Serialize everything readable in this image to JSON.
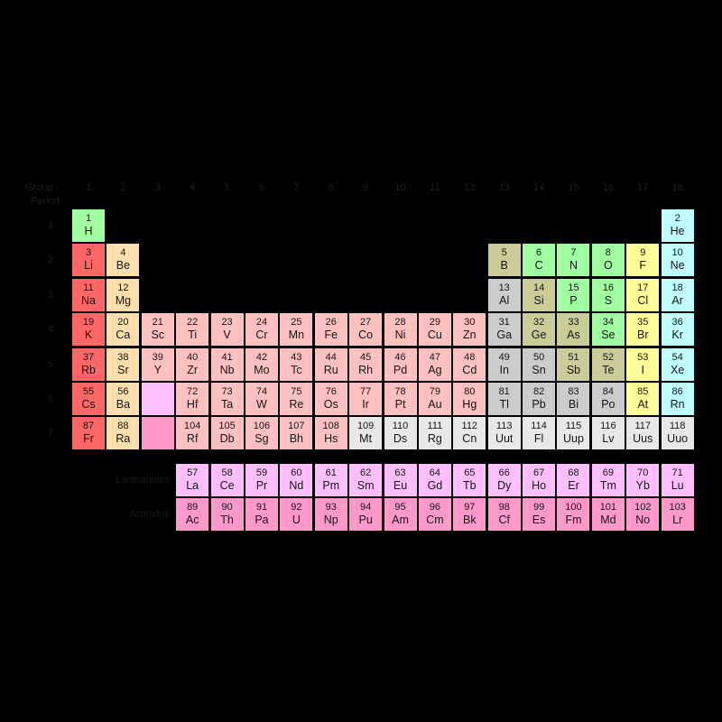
{
  "labels": {
    "group": "Group",
    "period": "Period",
    "lanthanides": "Lanthanides",
    "actinides": "Actinides"
  },
  "group_numbers": [
    "1",
    "2",
    "3",
    "4",
    "5",
    "6",
    "7",
    "8",
    "9",
    "10",
    "11",
    "12",
    "13",
    "14",
    "15",
    "16",
    "17",
    "18"
  ],
  "period_numbers": [
    "1",
    "2",
    "3",
    "4",
    "5",
    "6",
    "7"
  ],
  "colors": {
    "alkali": "#ff6666",
    "alkaline": "#ffdead",
    "transition": "#ffc0c0",
    "post": "#cccccc",
    "metalloid": "#cccc99",
    "nonmetal": "#a0ffa0",
    "halogen": "#ffff99",
    "noble": "#c0ffff",
    "lanthanide": "#ffbfff",
    "actinide": "#ff99cc",
    "unknown": "#e8e8e8"
  },
  "elements": [
    {
      "number": "1",
      "symbol": "H",
      "category": "nonmetal",
      "row": 1,
      "col": 1
    },
    {
      "number": "2",
      "symbol": "He",
      "category": "noble",
      "row": 1,
      "col": 18
    },
    {
      "number": "3",
      "symbol": "Li",
      "category": "alkali",
      "row": 2,
      "col": 1
    },
    {
      "number": "4",
      "symbol": "Be",
      "category": "alkaline",
      "row": 2,
      "col": 2
    },
    {
      "number": "5",
      "symbol": "B",
      "category": "metalloid",
      "row": 2,
      "col": 13
    },
    {
      "number": "6",
      "symbol": "C",
      "category": "nonmetal",
      "row": 2,
      "col": 14
    },
    {
      "number": "7",
      "symbol": "N",
      "category": "nonmetal",
      "row": 2,
      "col": 15
    },
    {
      "number": "8",
      "symbol": "O",
      "category": "nonmetal",
      "row": 2,
      "col": 16
    },
    {
      "number": "9",
      "symbol": "F",
      "category": "halogen",
      "row": 2,
      "col": 17
    },
    {
      "number": "10",
      "symbol": "Ne",
      "category": "noble",
      "row": 2,
      "col": 18
    },
    {
      "number": "11",
      "symbol": "Na",
      "category": "alkali",
      "row": 3,
      "col": 1
    },
    {
      "number": "12",
      "symbol": "Mg",
      "category": "alkaline",
      "row": 3,
      "col": 2
    },
    {
      "number": "13",
      "symbol": "Al",
      "category": "post",
      "row": 3,
      "col": 13
    },
    {
      "number": "14",
      "symbol": "Si",
      "category": "metalloid",
      "row": 3,
      "col": 14
    },
    {
      "number": "15",
      "symbol": "P",
      "category": "nonmetal",
      "row": 3,
      "col": 15
    },
    {
      "number": "16",
      "symbol": "S",
      "category": "nonmetal",
      "row": 3,
      "col": 16
    },
    {
      "number": "17",
      "symbol": "Cl",
      "category": "halogen",
      "row": 3,
      "col": 17
    },
    {
      "number": "18",
      "symbol": "Ar",
      "category": "noble",
      "row": 3,
      "col": 18
    },
    {
      "number": "19",
      "symbol": "K",
      "category": "alkali",
      "row": 4,
      "col": 1
    },
    {
      "number": "20",
      "symbol": "Ca",
      "category": "alkaline",
      "row": 4,
      "col": 2
    },
    {
      "number": "21",
      "symbol": "Sc",
      "category": "transition",
      "row": 4,
      "col": 3
    },
    {
      "number": "22",
      "symbol": "Ti",
      "category": "transition",
      "row": 4,
      "col": 4
    },
    {
      "number": "23",
      "symbol": "V",
      "category": "transition",
      "row": 4,
      "col": 5
    },
    {
      "number": "24",
      "symbol": "Cr",
      "category": "transition",
      "row": 4,
      "col": 6
    },
    {
      "number": "25",
      "symbol": "Mn",
      "category": "transition",
      "row": 4,
      "col": 7
    },
    {
      "number": "26",
      "symbol": "Fe",
      "category": "transition",
      "row": 4,
      "col": 8
    },
    {
      "number": "27",
      "symbol": "Co",
      "category": "transition",
      "row": 4,
      "col": 9
    },
    {
      "number": "28",
      "symbol": "Ni",
      "category": "transition",
      "row": 4,
      "col": 10
    },
    {
      "number": "29",
      "symbol": "Cu",
      "category": "transition",
      "row": 4,
      "col": 11
    },
    {
      "number": "30",
      "symbol": "Zn",
      "category": "transition",
      "row": 4,
      "col": 12
    },
    {
      "number": "31",
      "symbol": "Ga",
      "category": "post",
      "row": 4,
      "col": 13
    },
    {
      "number": "32",
      "symbol": "Ge",
      "category": "metalloid",
      "row": 4,
      "col": 14
    },
    {
      "number": "33",
      "symbol": "As",
      "category": "metalloid",
      "row": 4,
      "col": 15
    },
    {
      "number": "34",
      "symbol": "Se",
      "category": "nonmetal",
      "row": 4,
      "col": 16
    },
    {
      "number": "35",
      "symbol": "Br",
      "category": "halogen",
      "row": 4,
      "col": 17
    },
    {
      "number": "36",
      "symbol": "Kr",
      "category": "noble",
      "row": 4,
      "col": 18
    },
    {
      "number": "37",
      "symbol": "Rb",
      "category": "alkali",
      "row": 5,
      "col": 1
    },
    {
      "number": "38",
      "symbol": "Sr",
      "category": "alkaline",
      "row": 5,
      "col": 2
    },
    {
      "number": "39",
      "symbol": "Y",
      "category": "transition",
      "row": 5,
      "col": 3
    },
    {
      "number": "40",
      "symbol": "Zr",
      "category": "transition",
      "row": 5,
      "col": 4
    },
    {
      "number": "41",
      "symbol": "Nb",
      "category": "transition",
      "row": 5,
      "col": 5
    },
    {
      "number": "42",
      "symbol": "Mo",
      "category": "transition",
      "row": 5,
      "col": 6
    },
    {
      "number": "43",
      "symbol": "Tc",
      "category": "transition",
      "row": 5,
      "col": 7
    },
    {
      "number": "44",
      "symbol": "Ru",
      "category": "transition",
      "row": 5,
      "col": 8
    },
    {
      "number": "45",
      "symbol": "Rh",
      "category": "transition",
      "row": 5,
      "col": 9
    },
    {
      "number": "46",
      "symbol": "Pd",
      "category": "transition",
      "row": 5,
      "col": 10
    },
    {
      "number": "47",
      "symbol": "Ag",
      "category": "transition",
      "row": 5,
      "col": 11
    },
    {
      "number": "48",
      "symbol": "Cd",
      "category": "transition",
      "row": 5,
      "col": 12
    },
    {
      "number": "49",
      "symbol": "In",
      "category": "post",
      "row": 5,
      "col": 13
    },
    {
      "number": "50",
      "symbol": "Sn",
      "category": "post",
      "row": 5,
      "col": 14
    },
    {
      "number": "51",
      "symbol": "Sb",
      "category": "metalloid",
      "row": 5,
      "col": 15
    },
    {
      "number": "52",
      "symbol": "Te",
      "category": "metalloid",
      "row": 5,
      "col": 16
    },
    {
      "number": "53",
      "symbol": "I",
      "category": "halogen",
      "row": 5,
      "col": 17
    },
    {
      "number": "54",
      "symbol": "Xe",
      "category": "noble",
      "row": 5,
      "col": 18
    },
    {
      "number": "55",
      "symbol": "Cs",
      "category": "alkali",
      "row": 6,
      "col": 1
    },
    {
      "number": "56",
      "symbol": "Ba",
      "category": "alkaline",
      "row": 6,
      "col": 2
    },
    {
      "number": "",
      "symbol": "",
      "category": "lanthanide",
      "row": 6,
      "col": 3
    },
    {
      "number": "72",
      "symbol": "Hf",
      "category": "transition",
      "row": 6,
      "col": 4
    },
    {
      "number": "73",
      "symbol": "Ta",
      "category": "transition",
      "row": 6,
      "col": 5
    },
    {
      "number": "74",
      "symbol": "W",
      "category": "transition",
      "row": 6,
      "col": 6
    },
    {
      "number": "75",
      "symbol": "Re",
      "category": "transition",
      "row": 6,
      "col": 7
    },
    {
      "number": "76",
      "symbol": "Os",
      "category": "transition",
      "row": 6,
      "col": 8
    },
    {
      "number": "77",
      "symbol": "Ir",
      "category": "transition",
      "row": 6,
      "col": 9
    },
    {
      "number": "78",
      "symbol": "Pt",
      "category": "transition",
      "row": 6,
      "col": 10
    },
    {
      "number": "79",
      "symbol": "Au",
      "category": "transition",
      "row": 6,
      "col": 11
    },
    {
      "number": "80",
      "symbol": "Hg",
      "category": "transition",
      "row": 6,
      "col": 12
    },
    {
      "number": "81",
      "symbol": "Tl",
      "category": "post",
      "row": 6,
      "col": 13
    },
    {
      "number": "82",
      "symbol": "Pb",
      "category": "post",
      "row": 6,
      "col": 14
    },
    {
      "number": "83",
      "symbol": "Bi",
      "category": "post",
      "row": 6,
      "col": 15
    },
    {
      "number": "84",
      "symbol": "Po",
      "category": "post",
      "row": 6,
      "col": 16
    },
    {
      "number": "85",
      "symbol": "At",
      "category": "halogen",
      "row": 6,
      "col": 17
    },
    {
      "number": "86",
      "symbol": "Rn",
      "category": "noble",
      "row": 6,
      "col": 18
    },
    {
      "number": "87",
      "symbol": "Fr",
      "category": "alkali",
      "row": 7,
      "col": 1
    },
    {
      "number": "88",
      "symbol": "Ra",
      "category": "alkaline",
      "row": 7,
      "col": 2
    },
    {
      "number": "",
      "symbol": "",
      "category": "actinide",
      "row": 7,
      "col": 3
    },
    {
      "number": "104",
      "symbol": "Rf",
      "category": "transition",
      "row": 7,
      "col": 4
    },
    {
      "number": "105",
      "symbol": "Db",
      "category": "transition",
      "row": 7,
      "col": 5
    },
    {
      "number": "106",
      "symbol": "Sg",
      "category": "transition",
      "row": 7,
      "col": 6
    },
    {
      "number": "107",
      "symbol": "Bh",
      "category": "transition",
      "row": 7,
      "col": 7
    },
    {
      "number": "108",
      "symbol": "Hs",
      "category": "transition",
      "row": 7,
      "col": 8
    },
    {
      "number": "109",
      "symbol": "Mt",
      "category": "unknown",
      "row": 7,
      "col": 9
    },
    {
      "number": "110",
      "symbol": "Ds",
      "category": "unknown",
      "row": 7,
      "col": 10
    },
    {
      "number": "111",
      "symbol": "Rg",
      "category": "unknown",
      "row": 7,
      "col": 11
    },
    {
      "number": "112",
      "symbol": "Cn",
      "category": "unknown",
      "row": 7,
      "col": 12
    },
    {
      "number": "113",
      "symbol": "Uut",
      "category": "unknown",
      "row": 7,
      "col": 13
    },
    {
      "number": "114",
      "symbol": "Fl",
      "category": "unknown",
      "row": 7,
      "col": 14
    },
    {
      "number": "115",
      "symbol": "Uup",
      "category": "unknown",
      "row": 7,
      "col": 15
    },
    {
      "number": "116",
      "symbol": "Lv",
      "category": "unknown",
      "row": 7,
      "col": 16
    },
    {
      "number": "117",
      "symbol": "Uus",
      "category": "unknown",
      "row": 7,
      "col": 17
    },
    {
      "number": "118",
      "symbol": "Uuo",
      "category": "unknown",
      "row": 7,
      "col": 18
    },
    {
      "number": "57",
      "symbol": "La",
      "category": "lanthanide",
      "row": 8,
      "col": 1
    },
    {
      "number": "58",
      "symbol": "Ce",
      "category": "lanthanide",
      "row": 8,
      "col": 2
    },
    {
      "number": "59",
      "symbol": "Pr",
      "category": "lanthanide",
      "row": 8,
      "col": 3
    },
    {
      "number": "60",
      "symbol": "Nd",
      "category": "lanthanide",
      "row": 8,
      "col": 4
    },
    {
      "number": "61",
      "symbol": "Pm",
      "category": "lanthanide",
      "row": 8,
      "col": 5
    },
    {
      "number": "62",
      "symbol": "Sm",
      "category": "lanthanide",
      "row": 8,
      "col": 6
    },
    {
      "number": "63",
      "symbol": "Eu",
      "category": "lanthanide",
      "row": 8,
      "col": 7
    },
    {
      "number": "64",
      "symbol": "Gd",
      "category": "lanthanide",
      "row": 8,
      "col": 8
    },
    {
      "number": "65",
      "symbol": "Tb",
      "category": "lanthanide",
      "row": 8,
      "col": 9
    },
    {
      "number": "66",
      "symbol": "Dy",
      "category": "lanthanide",
      "row": 8,
      "col": 10
    },
    {
      "number": "67",
      "symbol": "Ho",
      "category": "lanthanide",
      "row": 8,
      "col": 11
    },
    {
      "number": "68",
      "symbol": "Er",
      "category": "lanthanide",
      "row": 8,
      "col": 12
    },
    {
      "number": "69",
      "symbol": "Tm",
      "category": "lanthanide",
      "row": 8,
      "col": 13
    },
    {
      "number": "70",
      "symbol": "Yb",
      "category": "lanthanide",
      "row": 8,
      "col": 14
    },
    {
      "number": "71",
      "symbol": "Lu",
      "category": "lanthanide",
      "row": 8,
      "col": 15
    },
    {
      "number": "89",
      "symbol": "Ac",
      "category": "actinide",
      "row": 9,
      "col": 1
    },
    {
      "number": "90",
      "symbol": "Th",
      "category": "actinide",
      "row": 9,
      "col": 2
    },
    {
      "number": "91",
      "symbol": "Pa",
      "category": "actinide",
      "row": 9,
      "col": 3
    },
    {
      "number": "92",
      "symbol": "U",
      "category": "actinide",
      "row": 9,
      "col": 4
    },
    {
      "number": "93",
      "symbol": "Np",
      "category": "actinide",
      "row": 9,
      "col": 5
    },
    {
      "number": "94",
      "symbol": "Pu",
      "category": "actinide",
      "row": 9,
      "col": 6
    },
    {
      "number": "95",
      "symbol": "Am",
      "category": "actinide",
      "row": 9,
      "col": 7
    },
    {
      "number": "96",
      "symbol": "Cm",
      "category": "actinide",
      "row": 9,
      "col": 8
    },
    {
      "number": "97",
      "symbol": "Bk",
      "category": "actinide",
      "row": 9,
      "col": 9
    },
    {
      "number": "98",
      "symbol": "Cf",
      "category": "actinide",
      "row": 9,
      "col": 10
    },
    {
      "number": "99",
      "symbol": "Es",
      "category": "actinide",
      "row": 9,
      "col": 11
    },
    {
      "number": "100",
      "symbol": "Fm",
      "category": "actinide",
      "row": 9,
      "col": 12
    },
    {
      "number": "101",
      "symbol": "Md",
      "category": "actinide",
      "row": 9,
      "col": 13
    },
    {
      "number": "102",
      "symbol": "No",
      "category": "actinide",
      "row": 9,
      "col": 14
    },
    {
      "number": "103",
      "symbol": "Lr",
      "category": "actinide",
      "row": 9,
      "col": 15
    }
  ]
}
